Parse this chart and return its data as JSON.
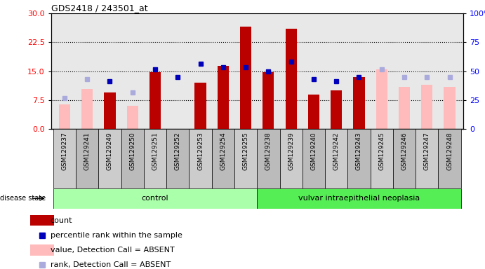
{
  "title": "GDS2418 / 243501_at",
  "samples": [
    "GSM129237",
    "GSM129241",
    "GSM129249",
    "GSM129250",
    "GSM129251",
    "GSM129252",
    "GSM129253",
    "GSM129254",
    "GSM129255",
    "GSM129238",
    "GSM129239",
    "GSM129240",
    "GSM129242",
    "GSM129243",
    "GSM129245",
    "GSM129246",
    "GSM129247",
    "GSM129248"
  ],
  "count_values": [
    null,
    null,
    9.5,
    null,
    14.8,
    null,
    12.0,
    16.5,
    26.5,
    14.8,
    26.0,
    9.0,
    10.0,
    13.5,
    null,
    null,
    null,
    null
  ],
  "absent_value_bars": [
    6.5,
    10.5,
    null,
    6.0,
    null,
    null,
    null,
    null,
    null,
    null,
    null,
    null,
    null,
    null,
    15.5,
    11.0,
    11.5,
    11.0
  ],
  "percentile_rank_dots_left": [
    null,
    null,
    12.5,
    null,
    15.5,
    13.5,
    17.0,
    16.0,
    16.0,
    15.0,
    17.5,
    13.0,
    12.5,
    13.5,
    null,
    null,
    null,
    null
  ],
  "absent_rank_dots_left": [
    8.0,
    13.0,
    null,
    9.5,
    null,
    null,
    null,
    null,
    null,
    null,
    null,
    null,
    null,
    null,
    15.5,
    13.5,
    13.5,
    13.5
  ],
  "control_count": 9,
  "neoplasia_count": 9,
  "ylim_left": [
    0,
    30
  ],
  "ylim_right": [
    0,
    100
  ],
  "yticks_left": [
    0,
    7.5,
    15,
    22.5,
    30
  ],
  "yticks_right": [
    0,
    25,
    50,
    75,
    100
  ],
  "bar_color_red": "#bb0000",
  "bar_color_pink": "#ffbbbb",
  "dot_color_blue": "#0000bb",
  "dot_color_lightblue": "#aaaadd",
  "control_bg_light": "#aaffaa",
  "control_bg_dark": "#55ee55",
  "neoplasia_bg_dark": "#55ee55",
  "plot_bg": "#e8e8e8",
  "xtick_bg_odd": "#cccccc",
  "xtick_bg_even": "#bbbbbb",
  "legend_items": [
    "count",
    "percentile rank within the sample",
    "value, Detection Call = ABSENT",
    "rank, Detection Call = ABSENT"
  ],
  "bar_width": 0.5,
  "dot_size": 5
}
